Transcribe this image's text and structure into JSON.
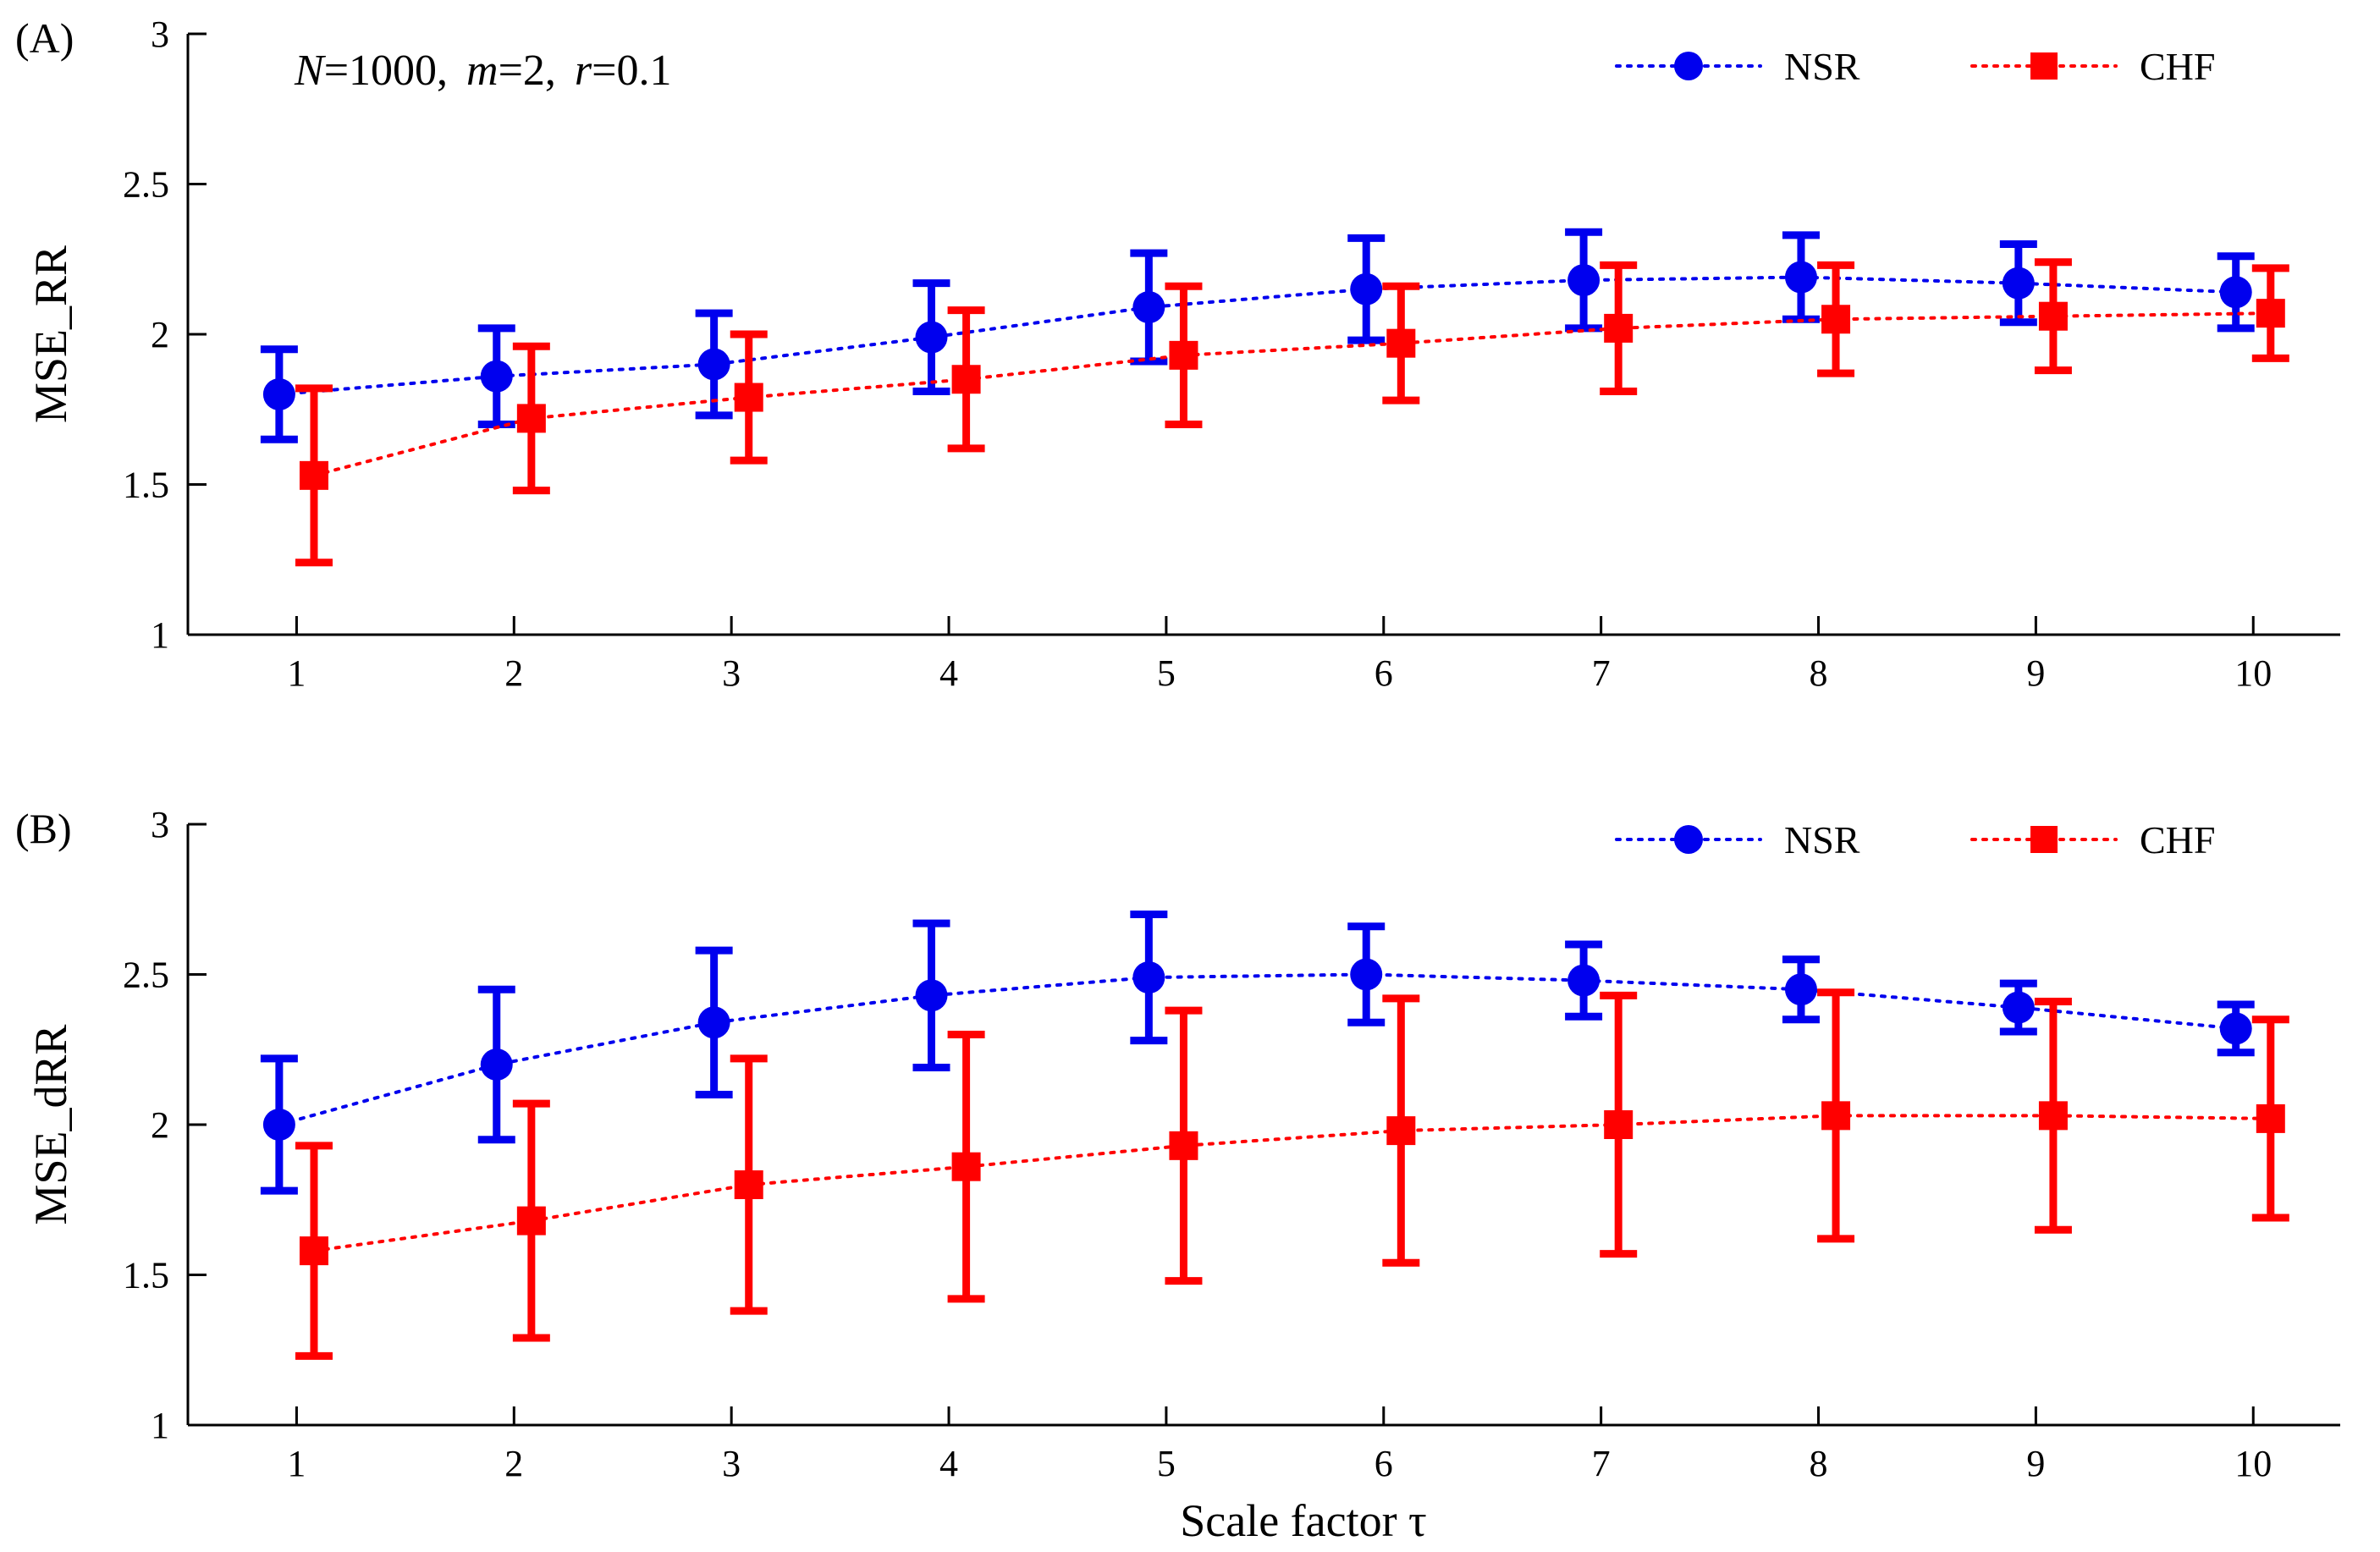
{
  "figure": {
    "xlabel": "Scale factor τ",
    "params": {
      "N": "N",
      "N_val": "=1000,",
      "m": "m",
      "m_val": "=2,",
      "r": "r",
      "r_val": "=0.1"
    }
  },
  "colors": {
    "nsr": "#0000ee",
    "chf": "#ff0000"
  },
  "chart_data": [
    {
      "type": "line",
      "panel_label": "(A)",
      "ylabel": "MSE_RR",
      "xlim": [
        0.5,
        10.4
      ],
      "ylim": [
        1,
        3
      ],
      "x_ticks": [
        "1",
        "2",
        "3",
        "4",
        "5",
        "6",
        "7",
        "8",
        "9",
        "10"
      ],
      "y_ticks": [
        "1",
        "1.5",
        "2",
        "2.5",
        "3"
      ],
      "series": [
        {
          "name": "NSR",
          "marker": "circle",
          "x_offset": -0.08,
          "values": [
            1.8,
            1.86,
            1.9,
            1.99,
            2.09,
            2.15,
            2.18,
            2.19,
            2.17,
            2.14
          ],
          "errors": [
            0.15,
            0.16,
            0.17,
            0.18,
            0.18,
            0.17,
            0.16,
            0.14,
            0.13,
            0.12
          ]
        },
        {
          "name": "CHF",
          "marker": "square",
          "x_offset": 0.08,
          "values": [
            1.53,
            1.72,
            1.79,
            1.85,
            1.93,
            1.97,
            2.02,
            2.05,
            2.06,
            2.07
          ],
          "errors": [
            0.29,
            0.24,
            0.21,
            0.23,
            0.23,
            0.19,
            0.21,
            0.18,
            0.18,
            0.15
          ]
        }
      ]
    },
    {
      "type": "line",
      "panel_label": "(B)",
      "ylabel": "MSE_dRR",
      "xlim": [
        0.5,
        10.4
      ],
      "ylim": [
        1,
        3
      ],
      "x_ticks": [
        "1",
        "2",
        "3",
        "4",
        "5",
        "6",
        "7",
        "8",
        "9",
        "10"
      ],
      "y_ticks": [
        "1",
        "1.5",
        "2",
        "2.5",
        "3"
      ],
      "series": [
        {
          "name": "NSR",
          "marker": "circle",
          "x_offset": -0.08,
          "values": [
            2.0,
            2.2,
            2.34,
            2.43,
            2.49,
            2.5,
            2.48,
            2.45,
            2.39,
            2.32
          ],
          "errors": [
            0.22,
            0.25,
            0.24,
            0.24,
            0.21,
            0.16,
            0.12,
            0.1,
            0.08,
            0.08
          ]
        },
        {
          "name": "CHF",
          "marker": "square",
          "x_offset": 0.08,
          "values": [
            1.58,
            1.68,
            1.8,
            1.86,
            1.93,
            1.98,
            2.0,
            2.03,
            2.03,
            2.02
          ],
          "errors": [
            0.35,
            0.39,
            0.42,
            0.44,
            0.45,
            0.44,
            0.43,
            0.41,
            0.38,
            0.33
          ]
        }
      ]
    }
  ]
}
